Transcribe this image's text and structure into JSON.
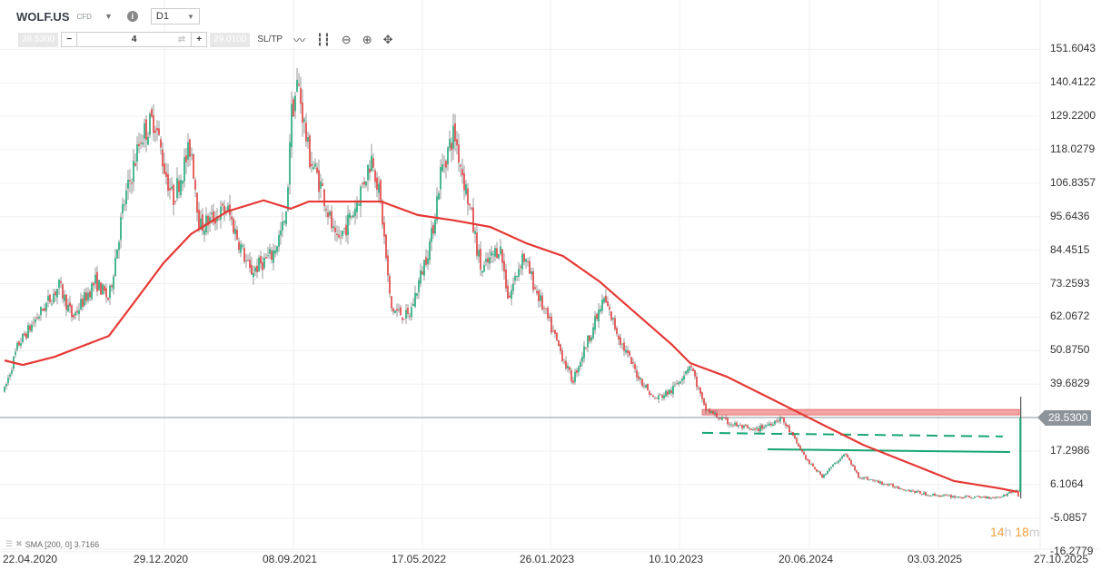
{
  "header": {
    "symbol": "WOLF.US",
    "instrument_type": "CFD",
    "timeframe": "D1",
    "sell_price": "28.5300",
    "buy_price": "29.0100",
    "volume": "4",
    "minus": "−",
    "plus": "+",
    "sltp_label": "SL/TP"
  },
  "indicator_legend": "SMA [200, 0] 3.7166",
  "timer": {
    "hours": "14",
    "h": "h",
    "minutes": "18",
    "m": "m"
  },
  "current_price_label": "28.5300",
  "colors": {
    "up": "#1aa774",
    "down": "#e03a3a",
    "sma": "#e53935",
    "zone_fill": "#f3a3a3",
    "trendline": "#17a673",
    "price_line": "#8c9399"
  },
  "chart_data": {
    "type": "candlestick",
    "title": "WOLF.US D1",
    "y_ticks": [
      "151.6043",
      "140.4122",
      "129.2200",
      "118.0279",
      "106.8357",
      "95.6436",
      "84.4515",
      "73.2593",
      "62.0672",
      "50.8750",
      "39.6829",
      "28.5300",
      "17.2986",
      "6.1064",
      "-5.0857",
      "-16.2779"
    ],
    "x_ticks": [
      "22.04.2020",
      "29.12.2020",
      "08.09.2021",
      "17.05.2022",
      "26.01.2023",
      "10.10.2023",
      "20.06.2024",
      "03.03.2025",
      "27.10.2025"
    ],
    "ylim": [
      -16.2779,
      160
    ],
    "x_unit": "days since 22.04.2020",
    "xlim": [
      0,
      2000
    ],
    "price_path": [
      [
        0,
        37.6
      ],
      [
        26,
        52.8
      ],
      [
        105,
        72.5
      ],
      [
        131,
        61.9
      ],
      [
        175,
        74
      ],
      [
        201,
        68
      ],
      [
        228,
        98.2
      ],
      [
        263,
        122.5
      ],
      [
        289,
        128.5
      ],
      [
        306,
        113.4
      ],
      [
        324,
        101.3
      ],
      [
        359,
        119.5
      ],
      [
        376,
        92.2
      ],
      [
        429,
        98.2
      ],
      [
        473,
        77
      ],
      [
        516,
        83
      ],
      [
        543,
        95.2
      ],
      [
        551,
        128.5
      ],
      [
        565,
        140.6
      ],
      [
        586,
        116.4
      ],
      [
        613,
        104.3
      ],
      [
        639,
        86.1
      ],
      [
        674,
        98.2
      ],
      [
        709,
        116.4
      ],
      [
        726,
        98.2
      ],
      [
        744,
        64.9
      ],
      [
        779,
        61.9
      ],
      [
        823,
        89.2
      ],
      [
        840,
        110.4
      ],
      [
        866,
        124
      ],
      [
        893,
        101.3
      ],
      [
        919,
        77
      ],
      [
        954,
        86.1
      ],
      [
        971,
        68
      ],
      [
        998,
        83
      ],
      [
        1024,
        71
      ],
      [
        1059,
        55.8
      ],
      [
        1094,
        40.6
      ],
      [
        1120,
        52.8
      ],
      [
        1155,
        68
      ],
      [
        1190,
        52.8
      ],
      [
        1216,
        43.7
      ],
      [
        1251,
        34.6
      ],
      [
        1286,
        37.6
      ],
      [
        1321,
        46.7
      ],
      [
        1348,
        31.6
      ],
      [
        1391,
        27
      ],
      [
        1444,
        24
      ],
      [
        1496,
        28.5
      ],
      [
        1549,
        13.4
      ],
      [
        1575,
        8.9
      ],
      [
        1619,
        16.5
      ],
      [
        1645,
        8.9
      ],
      [
        1706,
        5.8
      ],
      [
        1776,
        2.8
      ],
      [
        1846,
        1.9
      ],
      [
        1916,
        1.9
      ],
      [
        1948,
        4.3
      ],
      [
        1955,
        1.9
      ]
    ],
    "last_candle": {
      "day": 1956,
      "open": 3.7,
      "high": 35.5,
      "low": 1.5,
      "close": 28.53
    },
    "sma_200": [
      [
        0,
        47.6
      ],
      [
        35,
        46.1
      ],
      [
        96,
        48.8
      ],
      [
        201,
        55.8
      ],
      [
        254,
        68
      ],
      [
        306,
        80.1
      ],
      [
        359,
        89.8
      ],
      [
        429,
        97.4
      ],
      [
        499,
        101.1
      ],
      [
        551,
        98.3
      ],
      [
        586,
        100.7
      ],
      [
        691,
        100.7
      ],
      [
        726,
        100.7
      ],
      [
        796,
        96.2
      ],
      [
        866,
        94.4
      ],
      [
        936,
        92.2
      ],
      [
        1006,
        86.7
      ],
      [
        1076,
        82.5
      ],
      [
        1146,
        74
      ],
      [
        1216,
        63.4
      ],
      [
        1286,
        52.8
      ],
      [
        1321,
        46.7
      ],
      [
        1391,
        42.2
      ],
      [
        1479,
        34.6
      ],
      [
        1566,
        27
      ],
      [
        1654,
        19.4
      ],
      [
        1741,
        13.4
      ],
      [
        1829,
        7.3
      ],
      [
        1916,
        4.9
      ],
      [
        1951,
        3.7
      ]
    ],
    "annotations": {
      "resistance_zone": {
        "from_day": 1344,
        "to_day": 1955,
        "low": 29.4,
        "high": 31.2
      },
      "dashed_trendline": {
        "from": [
          1344,
          23.4
        ],
        "to": [
          1923,
          22.2
        ]
      },
      "solid_trendline": {
        "from": [
          1470,
          17.9
        ],
        "to": [
          1937,
          17.0
        ]
      }
    }
  }
}
